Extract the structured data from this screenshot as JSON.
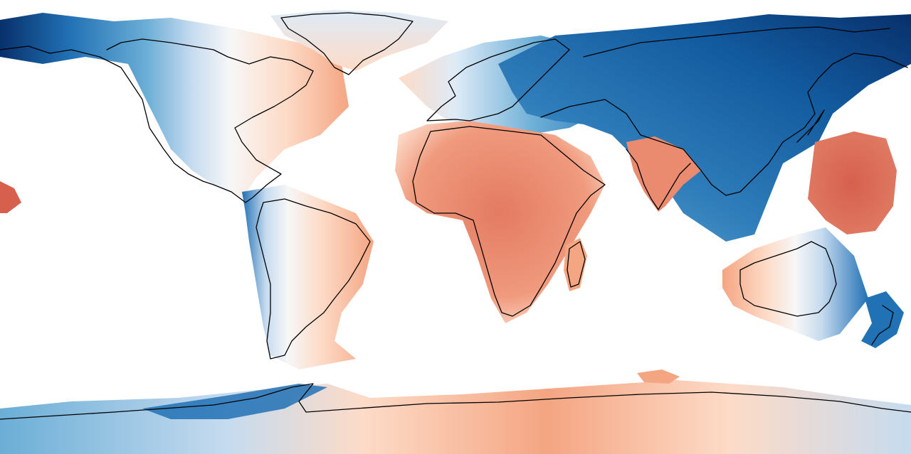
{
  "map": {
    "projection": "equirectangular",
    "background_color": "#ffffff",
    "coastline_color": "#000000",
    "colormap": [
      "#08306b",
      "#2171b5",
      "#6baed6",
      "#c6dbef",
      "#f7f7f7",
      "#fddbc7",
      "#f4a582",
      "#e58268",
      "#d6604d"
    ],
    "fill_regions": [
      {
        "name": "north-america-west",
        "tone": "blue"
      },
      {
        "name": "north-america-east",
        "tone": "red"
      },
      {
        "name": "greenland",
        "tone": "light-red"
      },
      {
        "name": "south-america",
        "tone": "red"
      },
      {
        "name": "europe-north",
        "tone": "light-blue"
      },
      {
        "name": "africa",
        "tone": "red"
      },
      {
        "name": "madagascar",
        "tone": "red"
      },
      {
        "name": "india",
        "tone": "red"
      },
      {
        "name": "asia-east",
        "tone": "dark-blue"
      },
      {
        "name": "australia",
        "tone": "blue-red"
      },
      {
        "name": "new-zealand",
        "tone": "blue"
      },
      {
        "name": "pacific-patch",
        "tone": "dark-red"
      },
      {
        "name": "antarctica",
        "tone": "light-blue-red"
      }
    ]
  }
}
